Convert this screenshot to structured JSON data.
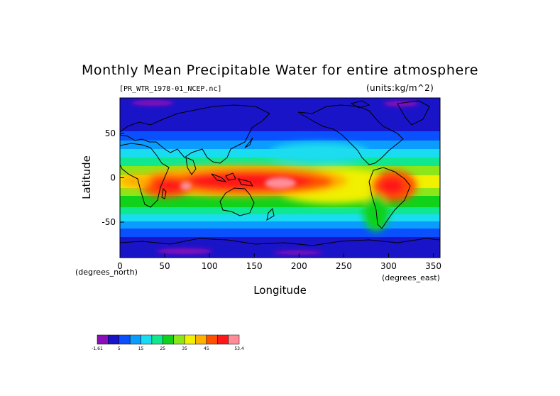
{
  "chart_data": {
    "type": "heatmap",
    "title": "Monthly Mean Precipitable Water for entire atmosphere",
    "file_label": "[PR_WTR_1978-01_NCEP.nc]",
    "units_label": "(units:kg/m^2)",
    "xlabel": "Longitude",
    "ylabel": "Latitude",
    "x_unit_label": "(degrees_east)",
    "y_unit_label": "(degrees_north)",
    "xlim": [
      0,
      357.5
    ],
    "ylim": [
      -90,
      90
    ],
    "x_ticks": [
      "0",
      "50",
      "100",
      "150",
      "200",
      "250",
      "300",
      "350"
    ],
    "y_ticks": [
      "50",
      "0",
      "-50"
    ],
    "legend": {
      "position": "bottom-left",
      "colors": [
        "#8a0fb8",
        "#1a14c8",
        "#0a50ff",
        "#0a9cff",
        "#1adcf0",
        "#10e890",
        "#10d21a",
        "#8ce618",
        "#f0f000",
        "#ffb000",
        "#ff5000",
        "#ff1818",
        "#ff8c96"
      ],
      "labels": [
        "-1.61",
        "5",
        "15",
        "25",
        "35",
        "45",
        "53.4"
      ]
    }
  }
}
